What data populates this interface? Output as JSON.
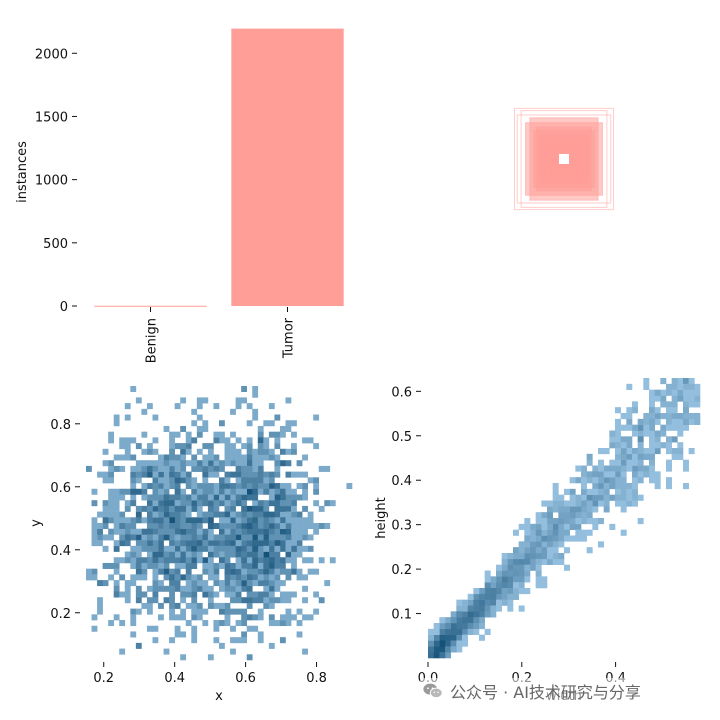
{
  "chart_data": [
    {
      "id": "labels",
      "type": "bar",
      "categories": [
        "Benign",
        "Tumor"
      ],
      "values": [
        2,
        2195
      ],
      "ylabel": "instances",
      "ylim": [
        0,
        2200
      ],
      "yticks": [
        0,
        500,
        1000,
        1500,
        2000
      ],
      "color": "#ff9d97",
      "grid": false
    },
    {
      "id": "box-overlay",
      "type": "rect-overlay",
      "boxes": [
        {
          "w": 0.9,
          "h": 0.92
        },
        {
          "w": 0.85,
          "h": 0.8
        },
        {
          "w": 0.78,
          "h": 0.88
        },
        {
          "w": 0.7,
          "h": 0.66
        },
        {
          "w": 0.62,
          "h": 0.75
        },
        {
          "w": 0.55,
          "h": 0.52
        },
        {
          "w": 0.5,
          "h": 0.58
        },
        {
          "w": 0.45,
          "h": 0.42
        },
        {
          "w": 0.4,
          "h": 0.46
        },
        {
          "w": 0.35,
          "h": 0.32
        },
        {
          "w": 0.3,
          "h": 0.34
        },
        {
          "w": 0.25,
          "h": 0.24
        },
        {
          "w": 0.2,
          "h": 0.2
        },
        {
          "w": 0.15,
          "h": 0.14
        },
        {
          "w": 0.1,
          "h": 0.11
        },
        {
          "w": 0.06,
          "h": 0.06
        }
      ],
      "color": "#ff9d97"
    },
    {
      "id": "xy-hist",
      "type": "heatmap",
      "xlabel": "x",
      "ylabel": "y",
      "xlim": [
        0.15,
        0.9
      ],
      "ylim": [
        0.05,
        0.92
      ],
      "xticks": [
        0.2,
        0.4,
        0.6,
        0.8
      ],
      "yticks": [
        0.2,
        0.4,
        0.6,
        0.8
      ],
      "bins": 48,
      "points": 2200,
      "distribution": "bimodal-x",
      "color": "#1f77b4"
    },
    {
      "id": "wh-hist",
      "type": "heatmap",
      "xlabel": "width",
      "ylabel": "height",
      "xlim": [
        0.0,
        0.58
      ],
      "ylim": [
        0.0,
        0.63
      ],
      "xticks": [
        0.0,
        0.2,
        0.4
      ],
      "yticks": [
        0.1,
        0.2,
        0.3,
        0.4,
        0.5,
        0.6
      ],
      "bins": 48,
      "points": 2200,
      "distribution": "correlated",
      "color": "#1f77b4"
    }
  ],
  "watermark": {
    "text": "公众号 · AI技术研究与分享",
    "icon": "wechat-icon"
  }
}
